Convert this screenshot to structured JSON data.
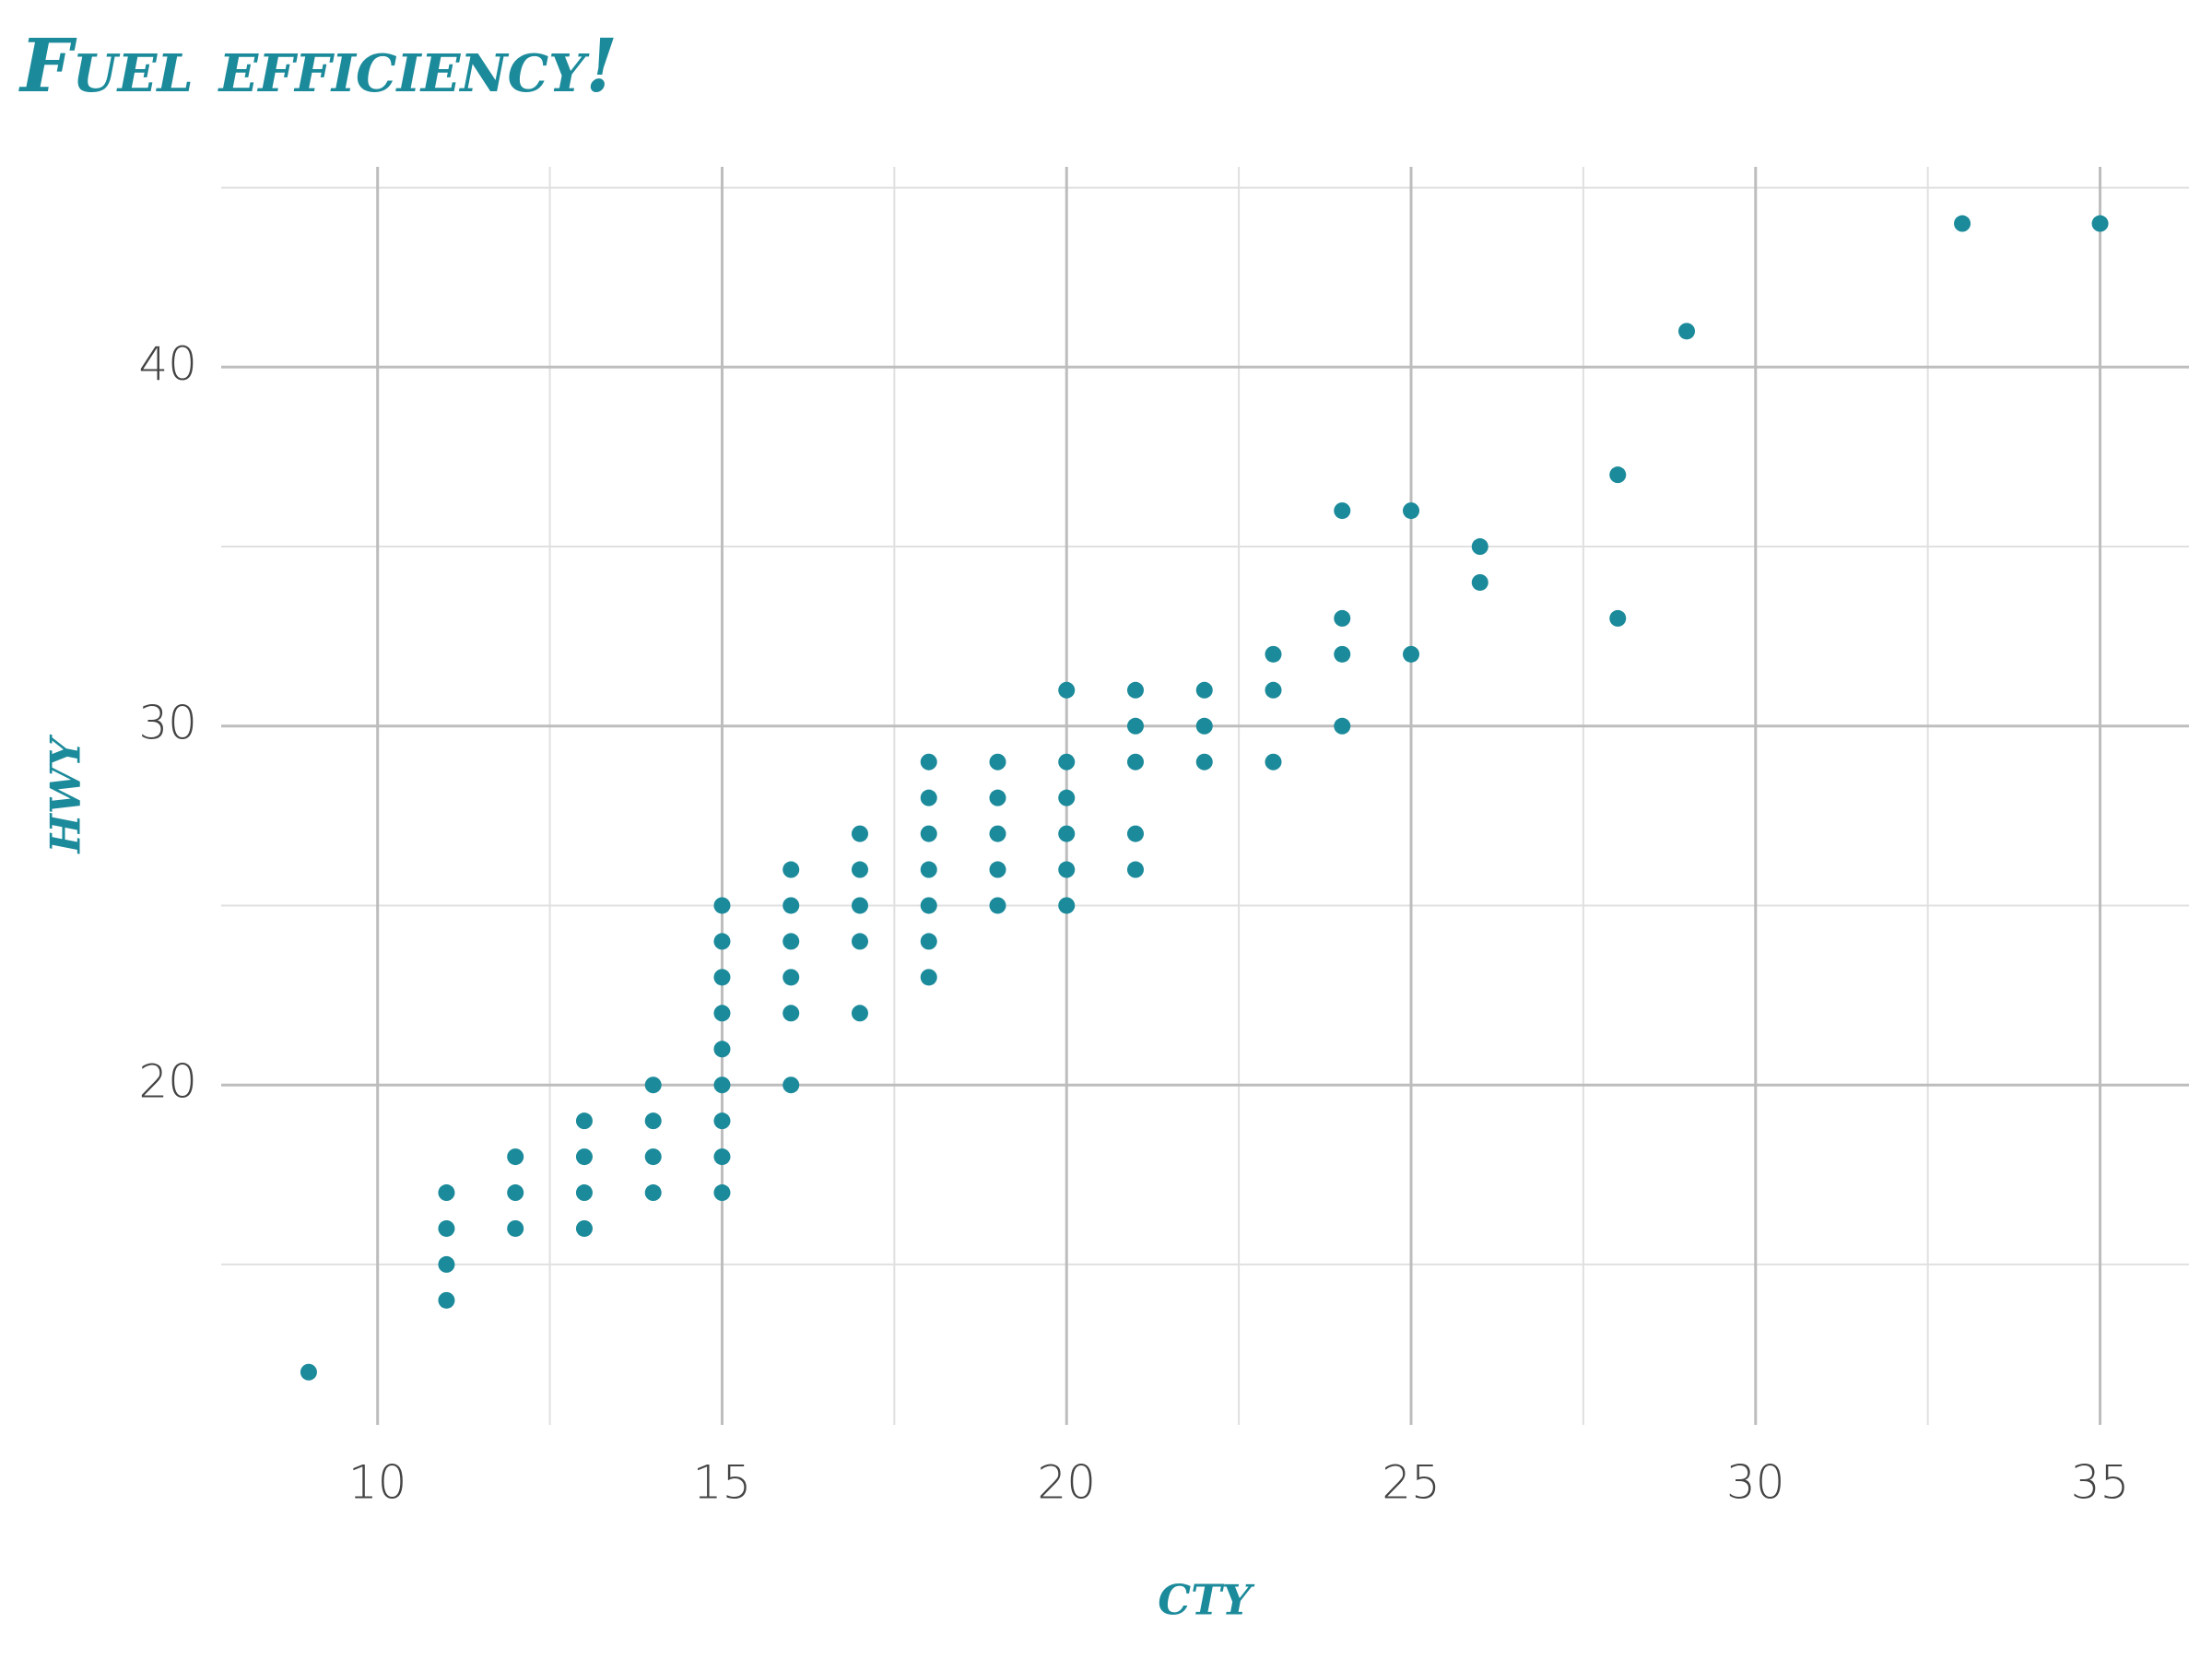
{
  "chart_data": {
    "type": "scatter",
    "title": "Fuel efficiency!",
    "x_label": "cty",
    "y_label": "hwy",
    "color": "#1b8a9a",
    "grid": true,
    "minor_grid": true,
    "xlim": [
      7.73,
      36.29
    ],
    "ylim": [
      10.53,
      45.58
    ],
    "xticks": [
      10,
      15,
      20,
      25,
      30,
      35
    ],
    "yticks": [
      20,
      30,
      40
    ],
    "x": [
      9,
      11,
      11,
      11,
      11,
      12,
      12,
      12,
      13,
      13,
      13,
      13,
      14,
      14,
      14,
      14,
      15,
      15,
      15,
      15,
      15,
      15,
      15,
      15,
      15,
      16,
      16,
      16,
      16,
      16,
      16,
      17,
      17,
      17,
      17,
      17,
      18,
      18,
      18,
      18,
      18,
      18,
      18,
      19,
      19,
      19,
      19,
      19,
      20,
      20,
      20,
      20,
      20,
      20,
      21,
      21,
      21,
      21,
      21,
      22,
      22,
      22,
      23,
      23,
      23,
      24,
      24,
      24,
      24,
      25,
      25,
      26,
      26,
      28,
      28,
      29,
      33,
      35
    ],
    "values": [
      12,
      14,
      15,
      16,
      17,
      16,
      17,
      18,
      16,
      17,
      18,
      19,
      17,
      18,
      19,
      20,
      17,
      18,
      19,
      20,
      21,
      22,
      23,
      24,
      25,
      20,
      22,
      23,
      24,
      25,
      26,
      22,
      24,
      25,
      26,
      27,
      23,
      24,
      25,
      26,
      27,
      28,
      29,
      25,
      26,
      27,
      28,
      29,
      25,
      26,
      27,
      28,
      29,
      31,
      26,
      27,
      29,
      30,
      31,
      29,
      30,
      31,
      29,
      31,
      32,
      30,
      32,
      33,
      36,
      32,
      36,
      34,
      35,
      33,
      37,
      41,
      44,
      44
    ]
  }
}
